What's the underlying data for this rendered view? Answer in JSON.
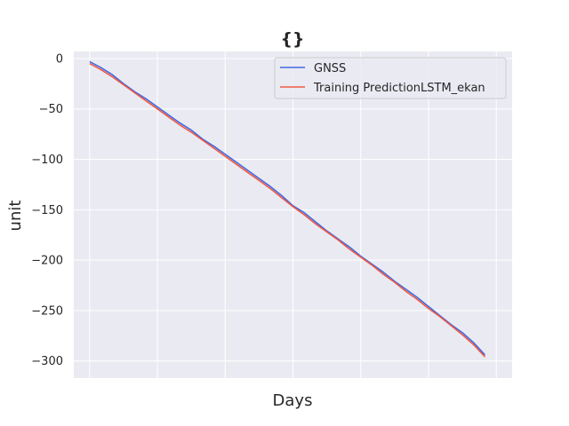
{
  "chart_data": {
    "type": "line",
    "title": "{}",
    "xlabel": "Days",
    "ylabel": "unit",
    "xlim": [
      -0.7,
      18.7
    ],
    "ylim": [
      -317,
      7
    ],
    "yticks": [
      0,
      -50,
      -100,
      -150,
      -200,
      -250,
      -300
    ],
    "ytick_labels": [
      "0",
      "−50",
      "−100",
      "−150",
      "−200",
      "−250",
      "−300"
    ],
    "xticks_count": 7,
    "grid": true,
    "legend_position": "top-right",
    "series": [
      {
        "name": "GNSS",
        "color": "#4169e1",
        "x": [
          0,
          0.5,
          1,
          1.5,
          2,
          2.5,
          3,
          3.5,
          4,
          4.5,
          5,
          5.5,
          6,
          6.5,
          7,
          7.5,
          8,
          8.5,
          9,
          9.5,
          10,
          10.5,
          11,
          11.5,
          12,
          12.5,
          13,
          13.5,
          14,
          14.5,
          15,
          15.5,
          16,
          16.5,
          17,
          17.5
        ],
        "values": [
          -3,
          -9,
          -16,
          -25,
          -33,
          -40,
          -48,
          -56,
          -64,
          -71,
          -80,
          -87,
          -95,
          -103,
          -111,
          -119,
          -127,
          -136,
          -146,
          -153,
          -162,
          -171,
          -179,
          -187,
          -196,
          -204,
          -212,
          -221,
          -229,
          -237,
          -246,
          -255,
          -264,
          -272,
          -282,
          -294
        ]
      },
      {
        "name": "Training PredictionLSTM_ekan",
        "color": "#ee5a45",
        "x": [
          0,
          0.5,
          1,
          1.5,
          2,
          2.5,
          3,
          3.5,
          4,
          4.5,
          5,
          5.5,
          6,
          6.5,
          7,
          7.5,
          8,
          8.5,
          9,
          9.5,
          10,
          10.5,
          11,
          11.5,
          12,
          12.5,
          13,
          13.5,
          14,
          14.5,
          15,
          15.5,
          16,
          16.5,
          17,
          17.5
        ],
        "values": [
          -5,
          -11,
          -18,
          -26,
          -34,
          -42,
          -50,
          -58,
          -66,
          -73,
          -81,
          -89,
          -97,
          -105,
          -113,
          -121,
          -129,
          -138,
          -147,
          -155,
          -164,
          -172,
          -180,
          -189,
          -197,
          -205,
          -214,
          -222,
          -231,
          -239,
          -248,
          -256,
          -265,
          -274,
          -284,
          -296
        ]
      }
    ]
  }
}
